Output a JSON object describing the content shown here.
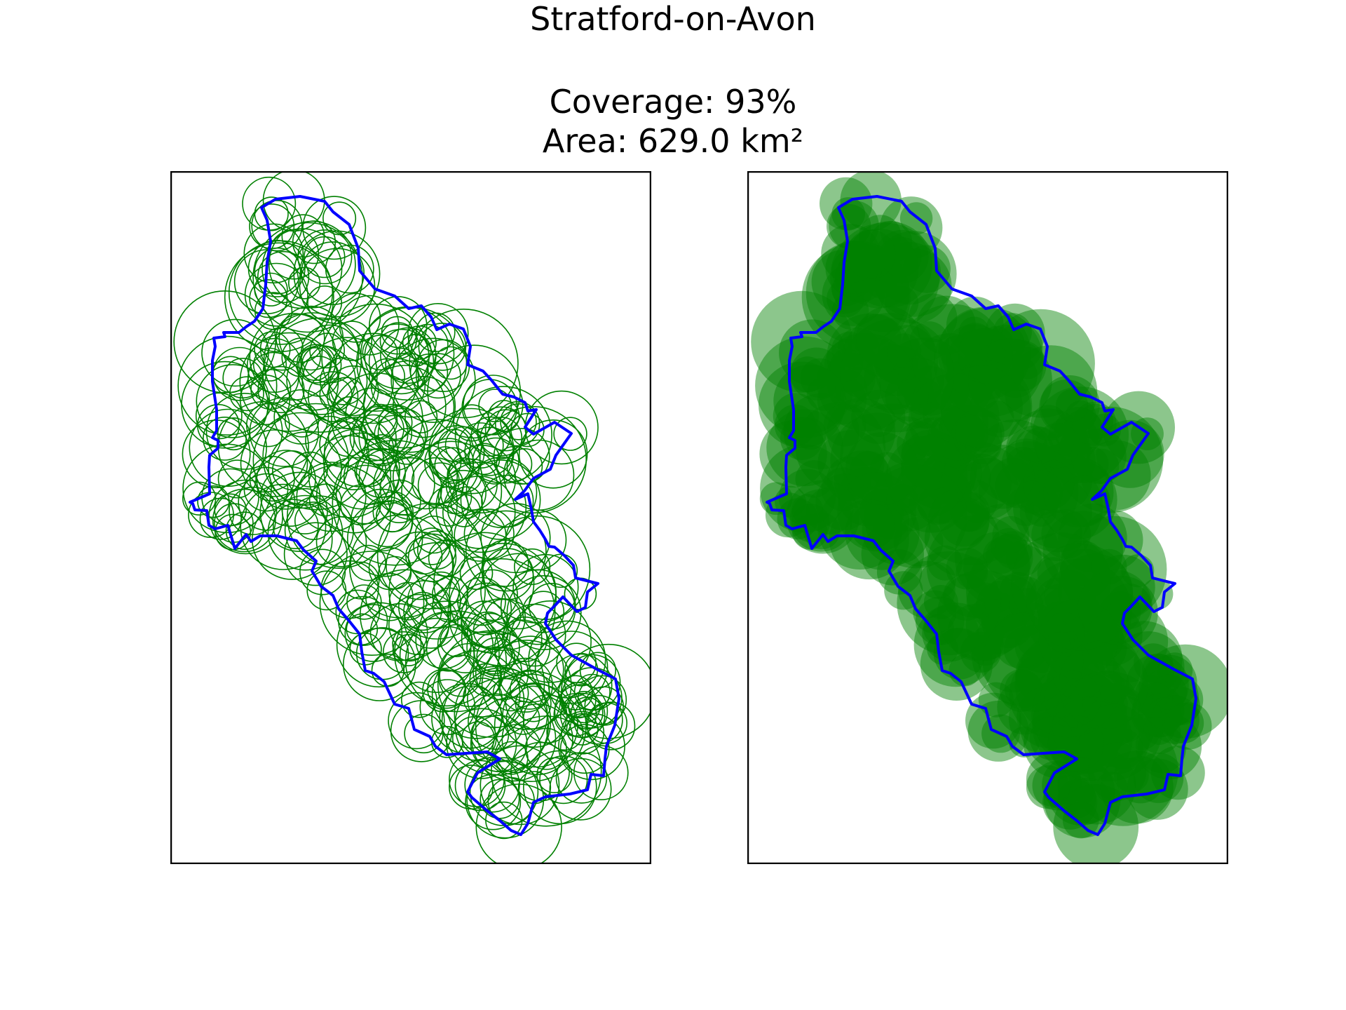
{
  "figure": {
    "title": "Stratford-on-Avon",
    "coverage_label": "Coverage: 93%",
    "area_label": "Area: 629.0 km²"
  },
  "stats": {
    "coverage_percent": 93,
    "area_km2": 629.0
  },
  "colors": {
    "boundary": "#0000ff",
    "circles": "#008000",
    "frame": "#000000",
    "background": "#ffffff"
  },
  "panels": [
    {
      "id": "circle-outlines",
      "style": "outline"
    },
    {
      "id": "circle-fills",
      "style": "filled",
      "fill_opacity": 0.45
    }
  ]
}
